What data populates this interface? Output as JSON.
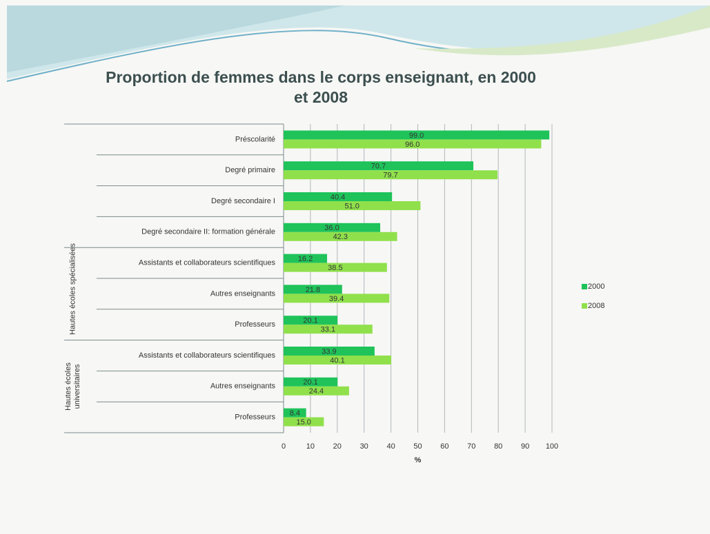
{
  "chart_data": {
    "type": "bar",
    "orientation": "horizontal",
    "title": "Proportion de femmes dans le corps enseignant, en 2000 et 2008",
    "categories": [
      "Préscolarité",
      "Degré primaire",
      "Degré secondaire I",
      "Degré secondaire II: formation générale",
      "Assistants et collaborateurs scientifiques",
      "Autres enseignants",
      "Professeurs",
      "Assistants et collaborateurs scientifiques",
      "Autres enseignants",
      "Professeurs"
    ],
    "category_groups": [
      null,
      null,
      null,
      null,
      "Hautes écoles spécialisées",
      "Hautes écoles spécialisées",
      "Hautes écoles spécialisées",
      "Hautes écoles universitaires",
      "Hautes écoles universitaires",
      "Hautes écoles universitaires"
    ],
    "series": [
      {
        "name": "2000",
        "color": "#1fc35a",
        "values": [
          99.0,
          70.7,
          40.4,
          36.0,
          16.2,
          21.8,
          20.1,
          33.9,
          20.1,
          8.4
        ],
        "value_labels": [
          "99.0",
          "70.7",
          "40.4",
          "36.0",
          "16.2",
          "21.8",
          "20.1",
          "33.9",
          "20.1",
          "8.4"
        ]
      },
      {
        "name": "2008",
        "color": "#90e04c",
        "values": [
          96.0,
          79.7,
          51.0,
          42.3,
          38.5,
          39.4,
          33.1,
          40.1,
          24.4,
          15.0
        ],
        "value_labels": [
          "96.0",
          "79.7",
          "51.0",
          "42.3",
          "38.5",
          "39.4",
          "33.1",
          "40.1",
          "24.4",
          "15.0"
        ]
      }
    ],
    "xlabel": "%",
    "xlim": [
      0,
      100
    ],
    "xticks": [
      0,
      10,
      20,
      30,
      40,
      50,
      60,
      70,
      80,
      90,
      100
    ],
    "grid": true,
    "legend": "right"
  }
}
